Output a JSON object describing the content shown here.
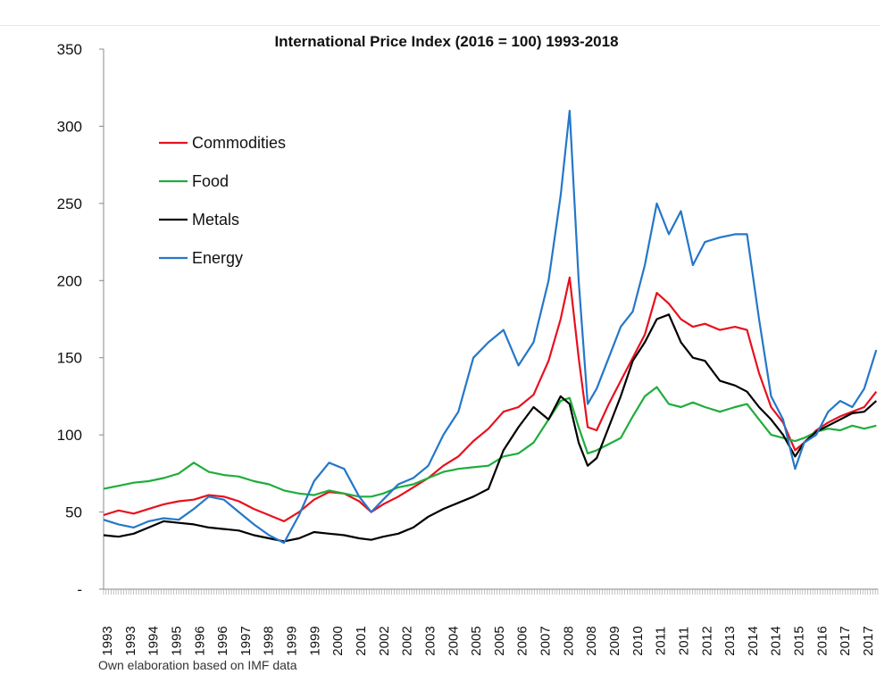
{
  "chart_data": {
    "type": "line",
    "title": "International Price Index (2016 = 100) 1993-2018",
    "xlabel": "",
    "ylabel": "",
    "x_range": [
      1993.0,
      2018.75
    ],
    "ylim": [
      0,
      350
    ],
    "y_ticks": [
      0,
      50,
      100,
      150,
      200,
      250,
      300,
      350
    ],
    "y_tick_labels": [
      "-",
      "50",
      "100",
      "150",
      "200",
      "250",
      "300",
      "350"
    ],
    "x_tick_labels": [
      "1993",
      "1993",
      "1994",
      "1995",
      "1996",
      "1996",
      "1997",
      "1998",
      "1999",
      "1999",
      "2000",
      "2001",
      "2002",
      "2002",
      "2003",
      "2004",
      "2005",
      "2005",
      "2006",
      "2007",
      "2008",
      "2008",
      "2009",
      "2010",
      "2011",
      "2011",
      "2012",
      "2013",
      "2014",
      "2014",
      "2015",
      "2016",
      "2017",
      "2017"
    ],
    "legend_position": "upper-left",
    "grid": false,
    "series": [
      {
        "name": "Commodities",
        "color": "#e8101e",
        "points": [
          [
            1993.0,
            48
          ],
          [
            1993.5,
            51
          ],
          [
            1994.0,
            49
          ],
          [
            1994.5,
            52
          ],
          [
            1995.0,
            55
          ],
          [
            1995.5,
            57
          ],
          [
            1996.0,
            58
          ],
          [
            1996.5,
            61
          ],
          [
            1997.0,
            60
          ],
          [
            1997.5,
            57
          ],
          [
            1998.0,
            52
          ],
          [
            1998.5,
            48
          ],
          [
            1999.0,
            44
          ],
          [
            1999.5,
            50
          ],
          [
            2000.0,
            58
          ],
          [
            2000.5,
            63
          ],
          [
            2001.0,
            62
          ],
          [
            2001.5,
            57
          ],
          [
            2001.9,
            50
          ],
          [
            2002.3,
            55
          ],
          [
            2002.8,
            60
          ],
          [
            2003.3,
            66
          ],
          [
            2003.8,
            72
          ],
          [
            2004.3,
            80
          ],
          [
            2004.8,
            86
          ],
          [
            2005.3,
            96
          ],
          [
            2005.8,
            104
          ],
          [
            2006.3,
            115
          ],
          [
            2006.8,
            118
          ],
          [
            2007.3,
            126
          ],
          [
            2007.8,
            148
          ],
          [
            2008.2,
            175
          ],
          [
            2008.5,
            202
          ],
          [
            2008.8,
            150
          ],
          [
            2009.1,
            105
          ],
          [
            2009.4,
            103
          ],
          [
            2009.8,
            120
          ],
          [
            2010.2,
            135
          ],
          [
            2010.6,
            150
          ],
          [
            2011.0,
            165
          ],
          [
            2011.4,
            192
          ],
          [
            2011.8,
            185
          ],
          [
            2012.2,
            175
          ],
          [
            2012.6,
            170
          ],
          [
            2013.0,
            172
          ],
          [
            2013.5,
            168
          ],
          [
            2014.0,
            170
          ],
          [
            2014.4,
            168
          ],
          [
            2014.8,
            140
          ],
          [
            2015.2,
            118
          ],
          [
            2015.6,
            108
          ],
          [
            2016.0,
            90
          ],
          [
            2016.3,
            95
          ],
          [
            2016.7,
            103
          ],
          [
            2017.1,
            108
          ],
          [
            2017.5,
            112
          ],
          [
            2017.9,
            115
          ],
          [
            2018.3,
            118
          ],
          [
            2018.7,
            128
          ]
        ]
      },
      {
        "name": "Food",
        "color": "#1fad3c",
        "points": [
          [
            1993.0,
            65
          ],
          [
            1993.5,
            67
          ],
          [
            1994.0,
            69
          ],
          [
            1994.5,
            70
          ],
          [
            1995.0,
            72
          ],
          [
            1995.5,
            75
          ],
          [
            1996.0,
            82
          ],
          [
            1996.5,
            76
          ],
          [
            1997.0,
            74
          ],
          [
            1997.5,
            73
          ],
          [
            1998.0,
            70
          ],
          [
            1998.5,
            68
          ],
          [
            1999.0,
            64
          ],
          [
            1999.5,
            62
          ],
          [
            2000.0,
            61
          ],
          [
            2000.5,
            64
          ],
          [
            2001.0,
            62
          ],
          [
            2001.5,
            60
          ],
          [
            2001.9,
            60
          ],
          [
            2002.3,
            62
          ],
          [
            2002.8,
            66
          ],
          [
            2003.3,
            68
          ],
          [
            2003.8,
            72
          ],
          [
            2004.3,
            76
          ],
          [
            2004.8,
            78
          ],
          [
            2005.3,
            79
          ],
          [
            2005.8,
            80
          ],
          [
            2006.3,
            86
          ],
          [
            2006.8,
            88
          ],
          [
            2007.3,
            95
          ],
          [
            2007.8,
            110
          ],
          [
            2008.2,
            122
          ],
          [
            2008.5,
            124
          ],
          [
            2008.8,
            105
          ],
          [
            2009.1,
            88
          ],
          [
            2009.4,
            90
          ],
          [
            2009.8,
            94
          ],
          [
            2010.2,
            98
          ],
          [
            2010.6,
            112
          ],
          [
            2011.0,
            125
          ],
          [
            2011.4,
            131
          ],
          [
            2011.8,
            120
          ],
          [
            2012.2,
            118
          ],
          [
            2012.6,
            121
          ],
          [
            2013.0,
            118
          ],
          [
            2013.5,
            115
          ],
          [
            2014.0,
            118
          ],
          [
            2014.4,
            120
          ],
          [
            2014.8,
            110
          ],
          [
            2015.2,
            100
          ],
          [
            2015.6,
            98
          ],
          [
            2016.0,
            96
          ],
          [
            2016.3,
            98
          ],
          [
            2016.7,
            102
          ],
          [
            2017.1,
            104
          ],
          [
            2017.5,
            103
          ],
          [
            2017.9,
            106
          ],
          [
            2018.3,
            104
          ],
          [
            2018.7,
            106
          ]
        ]
      },
      {
        "name": "Metals",
        "color": "#000000",
        "points": [
          [
            1993.0,
            35
          ],
          [
            1993.5,
            34
          ],
          [
            1994.0,
            36
          ],
          [
            1994.5,
            40
          ],
          [
            1995.0,
            44
          ],
          [
            1995.5,
            43
          ],
          [
            1996.0,
            42
          ],
          [
            1996.5,
            40
          ],
          [
            1997.0,
            39
          ],
          [
            1997.5,
            38
          ],
          [
            1998.0,
            35
          ],
          [
            1998.5,
            33
          ],
          [
            1999.0,
            31
          ],
          [
            1999.5,
            33
          ],
          [
            2000.0,
            37
          ],
          [
            2000.5,
            36
          ],
          [
            2001.0,
            35
          ],
          [
            2001.5,
            33
          ],
          [
            2001.9,
            32
          ],
          [
            2002.3,
            34
          ],
          [
            2002.8,
            36
          ],
          [
            2003.3,
            40
          ],
          [
            2003.8,
            47
          ],
          [
            2004.3,
            52
          ],
          [
            2004.8,
            56
          ],
          [
            2005.3,
            60
          ],
          [
            2005.8,
            65
          ],
          [
            2006.3,
            90
          ],
          [
            2006.8,
            105
          ],
          [
            2007.3,
            118
          ],
          [
            2007.8,
            110
          ],
          [
            2008.2,
            125
          ],
          [
            2008.5,
            120
          ],
          [
            2008.8,
            95
          ],
          [
            2009.1,
            80
          ],
          [
            2009.4,
            85
          ],
          [
            2009.8,
            105
          ],
          [
            2010.2,
            125
          ],
          [
            2010.6,
            148
          ],
          [
            2011.0,
            160
          ],
          [
            2011.4,
            175
          ],
          [
            2011.8,
            178
          ],
          [
            2012.2,
            160
          ],
          [
            2012.6,
            150
          ],
          [
            2013.0,
            148
          ],
          [
            2013.5,
            135
          ],
          [
            2014.0,
            132
          ],
          [
            2014.4,
            128
          ],
          [
            2014.8,
            118
          ],
          [
            2015.2,
            110
          ],
          [
            2015.6,
            100
          ],
          [
            2016.0,
            86
          ],
          [
            2016.3,
            95
          ],
          [
            2016.7,
            102
          ],
          [
            2017.1,
            106
          ],
          [
            2017.5,
            110
          ],
          [
            2017.9,
            114
          ],
          [
            2018.3,
            115
          ],
          [
            2018.7,
            122
          ]
        ]
      },
      {
        "name": "Energy",
        "color": "#2477c9",
        "points": [
          [
            1993.0,
            45
          ],
          [
            1993.5,
            42
          ],
          [
            1994.0,
            40
          ],
          [
            1994.5,
            44
          ],
          [
            1995.0,
            46
          ],
          [
            1995.5,
            45
          ],
          [
            1996.0,
            52
          ],
          [
            1996.5,
            60
          ],
          [
            1997.0,
            58
          ],
          [
            1997.5,
            50
          ],
          [
            1998.0,
            42
          ],
          [
            1998.5,
            35
          ],
          [
            1999.0,
            30
          ],
          [
            1999.5,
            48
          ],
          [
            2000.0,
            70
          ],
          [
            2000.5,
            82
          ],
          [
            2001.0,
            78
          ],
          [
            2001.5,
            60
          ],
          [
            2001.9,
            50
          ],
          [
            2002.3,
            58
          ],
          [
            2002.8,
            68
          ],
          [
            2003.3,
            72
          ],
          [
            2003.8,
            80
          ],
          [
            2004.3,
            100
          ],
          [
            2004.8,
            115
          ],
          [
            2005.3,
            150
          ],
          [
            2005.8,
            160
          ],
          [
            2006.3,
            168
          ],
          [
            2006.8,
            145
          ],
          [
            2007.3,
            160
          ],
          [
            2007.8,
            200
          ],
          [
            2008.2,
            255
          ],
          [
            2008.5,
            310
          ],
          [
            2008.8,
            200
          ],
          [
            2009.1,
            120
          ],
          [
            2009.4,
            130
          ],
          [
            2009.8,
            150
          ],
          [
            2010.2,
            170
          ],
          [
            2010.6,
            180
          ],
          [
            2011.0,
            210
          ],
          [
            2011.4,
            250
          ],
          [
            2011.8,
            230
          ],
          [
            2012.2,
            245
          ],
          [
            2012.6,
            210
          ],
          [
            2013.0,
            225
          ],
          [
            2013.5,
            228
          ],
          [
            2014.0,
            230
          ],
          [
            2014.4,
            230
          ],
          [
            2014.8,
            175
          ],
          [
            2015.2,
            125
          ],
          [
            2015.6,
            110
          ],
          [
            2016.0,
            78
          ],
          [
            2016.3,
            95
          ],
          [
            2016.7,
            100
          ],
          [
            2017.1,
            115
          ],
          [
            2017.5,
            122
          ],
          [
            2017.9,
            118
          ],
          [
            2018.3,
            130
          ],
          [
            2018.7,
            155
          ]
        ]
      }
    ]
  },
  "footer": {
    "note": "Own elaboration based on IMF data"
  }
}
